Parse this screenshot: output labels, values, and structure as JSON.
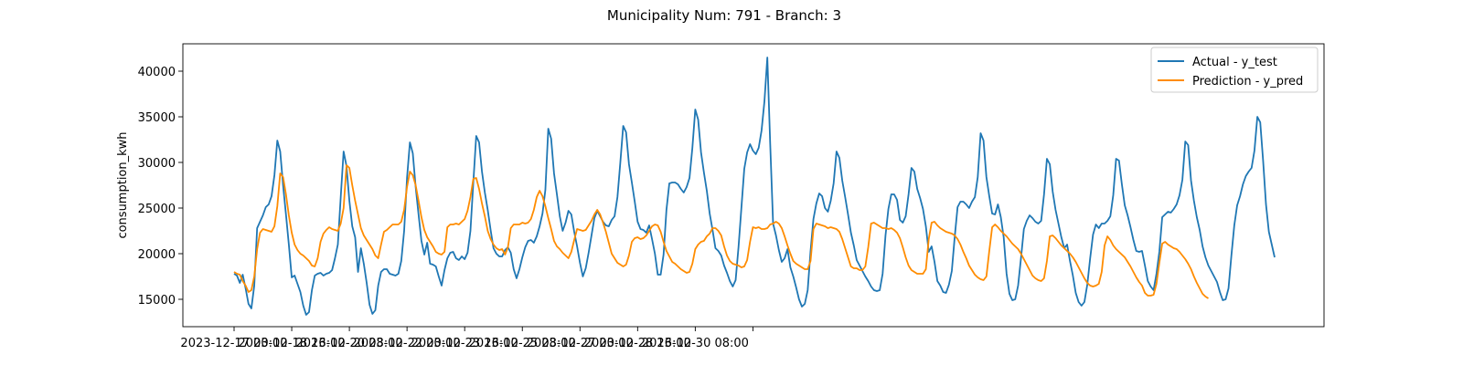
{
  "chart_data": {
    "type": "line",
    "title": "Municipality Num: 791 - Branch: 3",
    "xlabel": "",
    "ylabel": "consumption_kwh",
    "ylim": [
      12000,
      43000
    ],
    "yticks": [
      15000,
      20000,
      25000,
      30000,
      35000,
      40000
    ],
    "xticks": [
      "2023-12-17 00:00",
      "2023-12-18 16:00",
      "2023-12-20 08:00",
      "2023-12-22 00:00",
      "2023-12-23 16:00",
      "2023-12-25 08:00",
      "2023-12-27 00:00",
      "2023-12-28 16:00",
      "2023-12-30 08:00",
      ""
    ],
    "grid": false,
    "legend_position": "top-right",
    "series": [
      {
        "name": "Actual - y_test",
        "color": "#1f77b4",
        "x_start": "2023-12-17 00:00",
        "x_step_hours": 2,
        "values": [
          17800,
          17600,
          16800,
          17700,
          16200,
          14500,
          14000,
          16500,
          22800,
          23500,
          24200,
          25100,
          25400,
          26300,
          28600,
          32400,
          31200,
          27500,
          24300,
          21000,
          17400,
          17600,
          16700,
          15800,
          14300,
          13300,
          13600,
          16000,
          17600,
          17800,
          17900,
          17600,
          17800,
          17900,
          18200,
          19500,
          21000,
          26200,
          31200,
          29600,
          25800,
          23000,
          21800,
          18000,
          20600,
          18900,
          16800,
          14400,
          13400,
          13800,
          16500,
          18000,
          18300,
          18300,
          17800,
          17700,
          17600,
          17800,
          19200,
          22500,
          28300,
          32200,
          31000,
          27300,
          24300,
          21400,
          19900,
          21200,
          18900,
          18800,
          18600,
          17500,
          16500,
          18200,
          19500,
          20100,
          20200,
          19500,
          19300,
          19700,
          19400,
          20100,
          22500,
          27800,
          32900,
          32200,
          29000,
          26700,
          24800,
          22600,
          20600,
          20000,
          19700,
          19700,
          20400,
          20700,
          20100,
          18300,
          17300,
          18300,
          19600,
          20700,
          21400,
          21500,
          21200,
          21900,
          23000,
          24400,
          27000,
          33700,
          32600,
          28800,
          26500,
          24100,
          22500,
          23400,
          24700,
          24300,
          22400,
          20800,
          19000,
          17500,
          18400,
          20100,
          22000,
          23900,
          24700,
          24100,
          23500,
          23100,
          23000,
          23700,
          24100,
          26200,
          30000,
          34000,
          33300,
          29800,
          27800,
          25700,
          23500,
          22700,
          22600,
          22300,
          23100,
          21600,
          20000,
          17700,
          17700,
          19900,
          24800,
          27700,
          27800,
          27800,
          27600,
          27100,
          26700,
          27300,
          28300,
          31600,
          35800,
          34700,
          31100,
          28900,
          26900,
          24400,
          22600,
          20600,
          20300,
          19800,
          18700,
          17900,
          17000,
          16400,
          17100,
          20700,
          25000,
          29300,
          31100,
          32000,
          31300,
          30900,
          31600,
          33500,
          36700,
          41500,
          32000,
          23300,
          22000,
          20400,
          19100,
          19500,
          20500,
          18500,
          17500,
          16300,
          15000,
          14200,
          14500,
          16000,
          20300,
          23800,
          25500,
          26600,
          26300,
          25000,
          24600,
          25800,
          27700,
          31200,
          30500,
          28000,
          26200,
          24300,
          22300,
          20900,
          19300,
          18700,
          18100,
          17500,
          17000,
          16400,
          16000,
          15900,
          16000,
          17800,
          22000,
          24900,
          26500,
          26500,
          25900,
          23700,
          23400,
          24100,
          26500,
          29400,
          29000,
          27100,
          26100,
          24900,
          23000,
          20200,
          20800,
          19100,
          17000,
          16500,
          15800,
          15700,
          16600,
          18100,
          21800,
          25100,
          25700,
          25700,
          25400,
          25000,
          25700,
          26200,
          28400,
          33200,
          32400,
          28400,
          26300,
          24400,
          24300,
          25400,
          24000,
          21800,
          17800,
          15600,
          14900,
          15000,
          16500,
          19500,
          22700,
          23600,
          24200,
          23900,
          23500,
          23300,
          23600,
          26500,
          30400,
          29800,
          26800,
          24800,
          23300,
          21800,
          20600,
          21000,
          19200,
          17600,
          15700,
          14700,
          14300,
          14700,
          16600,
          19500,
          22100,
          23200,
          22800,
          23300,
          23300,
          23600,
          24100,
          26400,
          30400,
          30200,
          27600,
          25300,
          24200,
          22900,
          21500,
          20300,
          20200,
          20300,
          18700,
          17000,
          16400,
          16000,
          17800,
          20200,
          24000,
          24300,
          24600,
          24500,
          24900,
          25400,
          26400,
          28100,
          32300,
          31900,
          28000,
          25800,
          24000,
          22600,
          20800,
          19600,
          18700,
          18100,
          17500,
          16900,
          15800,
          14900,
          15000,
          16200,
          19800,
          23100,
          25300,
          26300,
          27600,
          28500,
          29000,
          29400,
          31300,
          35000,
          34400,
          30200,
          25400,
          22400,
          21000,
          19600
        ]
      },
      {
        "name": "Prediction - y_pred",
        "color": "#ff8c00",
        "x_start": "2023-12-17 00:00",
        "x_step_hours": 2,
        "values": [
          18000,
          17800,
          17700,
          17000,
          16500,
          15800,
          16000,
          17500,
          20500,
          22300,
          22700,
          22600,
          22500,
          22400,
          23000,
          25200,
          28800,
          28400,
          26500,
          24200,
          22300,
          21000,
          20400,
          20000,
          19800,
          19500,
          19200,
          18700,
          18600,
          19500,
          21300,
          22200,
          22600,
          22900,
          22700,
          22600,
          22500,
          23300,
          25000,
          29700,
          29400,
          27500,
          25800,
          24300,
          22800,
          22000,
          21500,
          21000,
          20500,
          19800,
          19500,
          21000,
          22400,
          22600,
          22900,
          23200,
          23200,
          23200,
          23500,
          24800,
          27300,
          29000,
          28600,
          27500,
          25800,
          24000,
          22600,
          21800,
          21300,
          20800,
          20200,
          20000,
          19900,
          20200,
          22900,
          23200,
          23200,
          23300,
          23200,
          23500,
          23800,
          24700,
          26200,
          28200,
          28300,
          27100,
          25500,
          24100,
          22500,
          21600,
          21000,
          20600,
          20400,
          20500,
          19900,
          20700,
          22800,
          23200,
          23200,
          23200,
          23400,
          23300,
          23400,
          23800,
          24800,
          26200,
          26900,
          26300,
          25200,
          23900,
          22700,
          21400,
          20800,
          20500,
          20100,
          19800,
          19500,
          20200,
          21500,
          22700,
          22600,
          22500,
          22600,
          23100,
          23600,
          24300,
          24800,
          24300,
          23400,
          22400,
          21200,
          20000,
          19500,
          19000,
          18800,
          18600,
          18800,
          19800,
          21300,
          21700,
          21800,
          21600,
          21700,
          22000,
          22500,
          23000,
          23200,
          23100,
          22400,
          21300,
          20300,
          19700,
          19100,
          18900,
          18600,
          18300,
          18100,
          17900,
          18000,
          18900,
          20500,
          21000,
          21300,
          21400,
          21900,
          22200,
          22800,
          22800,
          22500,
          22000,
          20800,
          19800,
          19200,
          18900,
          18800,
          18700,
          18500,
          18600,
          19300,
          21300,
          22900,
          22800,
          22900,
          22700,
          22700,
          22800,
          23200,
          23300,
          23500,
          23300,
          22800,
          21900,
          20900,
          20000,
          19200,
          18900,
          18700,
          18500,
          18300,
          18300,
          19200,
          22700,
          23300,
          23200,
          23100,
          23000,
          22800,
          22900,
          22800,
          22700,
          22400,
          21600,
          20600,
          19600,
          18600,
          18400,
          18400,
          18200,
          18200,
          18600,
          20700,
          23300,
          23400,
          23200,
          23000,
          22800,
          22800,
          22700,
          22800,
          22600,
          22300,
          21700,
          20700,
          19600,
          18700,
          18200,
          18000,
          17800,
          17800,
          17800,
          18300,
          21600,
          23400,
          23500,
          23100,
          22800,
          22600,
          22400,
          22300,
          22200,
          22000,
          21600,
          21000,
          20200,
          19500,
          18700,
          18200,
          17700,
          17400,
          17200,
          17100,
          17500,
          20300,
          22900,
          23200,
          22900,
          22500,
          22200,
          21900,
          21500,
          21100,
          20800,
          20500,
          20000,
          19400,
          18800,
          18200,
          17600,
          17300,
          17100,
          17000,
          17300,
          19200,
          21900,
          22000,
          21700,
          21300,
          20900,
          20600,
          20300,
          20000,
          19600,
          19100,
          18500,
          17900,
          17300,
          16800,
          16500,
          16400,
          16500,
          16700,
          18000,
          20900,
          21900,
          21500,
          20900,
          20500,
          20200,
          19900,
          19600,
          19100,
          18600,
          18000,
          17400,
          16900,
          16500,
          15700,
          15400,
          15400,
          15500,
          16700,
          19000,
          21100,
          21300,
          21000,
          20800,
          20600,
          20500,
          20200,
          19800,
          19400,
          18900,
          18300,
          17500,
          16800,
          16200,
          15600,
          15300,
          15100
        ]
      }
    ]
  }
}
